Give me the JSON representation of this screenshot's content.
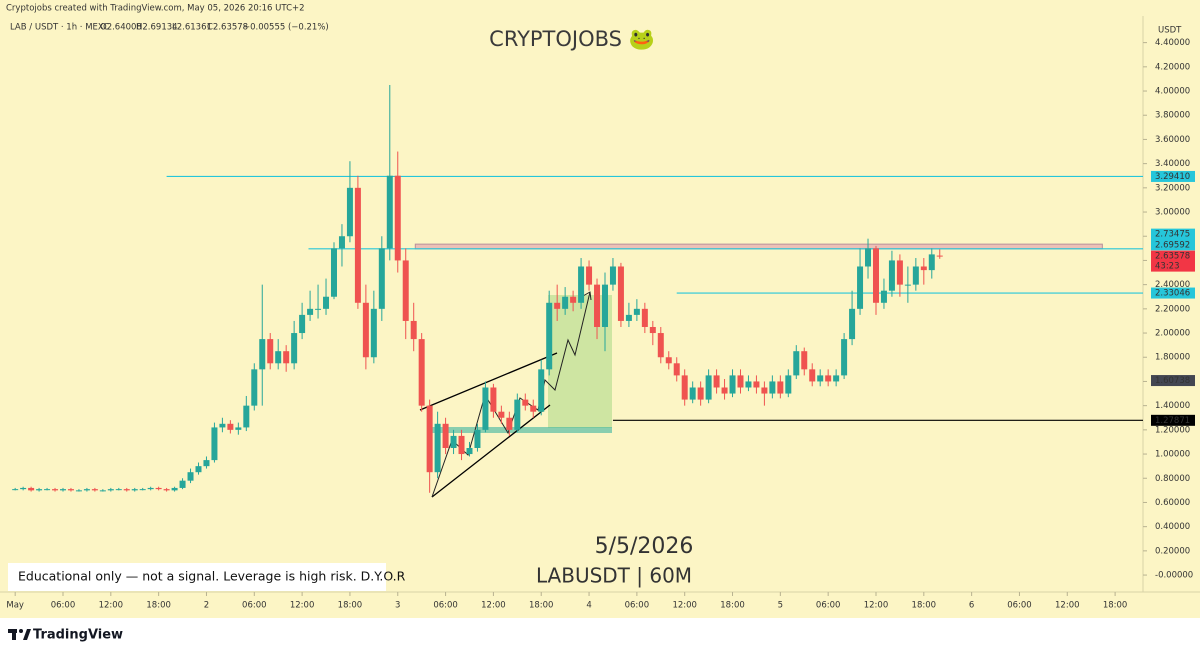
{
  "header": {
    "credit": "Cryptojobs created with TradingView.com, May 05, 2026 20:16 UTC+2",
    "symbol": "LAB / USDT · 1h · MEXC",
    "ohlc": [
      "O2.64008",
      "H2.69134",
      "L2.61361",
      "C2.63578",
      "−0.00555 (−0.21%)"
    ]
  },
  "chart_data": {
    "type": "candlestick",
    "title": "CRYPTOJOBS 🐸",
    "annotations": [
      "5/5/2026",
      "LABUSDT | 60M",
      "Educational only — not a signal. Leverage is high risk. D.Y.O.R"
    ],
    "y_axis_label": "USDT",
    "up_color": "#26a69a",
    "down_color": "#ef5350",
    "open": [
      0.71,
      0.71,
      0.72,
      0.7,
      0.71,
      0.71,
      0.7,
      0.71,
      0.7,
      0.7,
      0.71,
      0.7,
      0.7,
      0.71,
      0.71,
      0.7,
      0.71,
      0.71,
      0.72,
      0.71,
      0.7,
      0.72,
      0.78,
      0.85,
      0.9,
      0.95,
      1.22,
      1.25,
      1.2,
      1.22,
      1.4,
      1.7,
      1.95,
      1.75,
      1.85,
      1.75,
      2.0,
      2.15,
      2.2,
      2.2,
      2.3,
      2.7,
      2.8,
      3.2,
      2.25,
      1.8,
      2.2,
      2.7,
      3.3,
      2.6,
      2.1,
      1.95,
      1.4,
      0.85,
      1.25,
      1.05,
      1.15,
      1.0,
      1.05,
      1.2,
      1.55,
      1.35,
      1.3,
      1.2,
      1.45,
      1.4,
      1.35,
      1.7,
      2.25,
      2.2,
      2.3,
      2.25,
      2.55,
      2.4,
      2.05,
      2.4,
      2.55,
      2.1,
      2.15,
      2.2,
      2.05,
      2.0,
      1.8,
      1.75,
      1.65,
      1.45,
      1.55,
      1.45,
      1.65,
      1.55,
      1.5,
      1.65,
      1.55,
      1.6,
      1.55,
      1.5,
      1.6,
      1.5,
      1.65,
      1.85,
      1.7,
      1.6,
      1.65,
      1.6,
      1.65,
      1.95,
      2.2,
      2.55,
      2.7,
      2.25,
      2.35,
      2.6,
      2.4,
      2.4,
      2.55,
      2.52,
      2.64008
    ],
    "high": [
      0.72,
      0.73,
      0.73,
      0.72,
      0.72,
      0.72,
      0.72,
      0.72,
      0.71,
      0.72,
      0.72,
      0.71,
      0.72,
      0.72,
      0.72,
      0.72,
      0.72,
      0.73,
      0.73,
      0.72,
      0.73,
      0.8,
      0.88,
      0.93,
      0.98,
      1.26,
      1.3,
      1.28,
      1.26,
      1.48,
      1.75,
      2.4,
      2.0,
      1.95,
      1.9,
      2.1,
      2.25,
      2.35,
      2.4,
      2.45,
      2.75,
      2.9,
      3.42,
      3.3,
      2.4,
      2.35,
      2.8,
      4.05,
      3.5,
      2.7,
      2.25,
      2.0,
      1.45,
      1.35,
      1.3,
      1.2,
      1.2,
      1.1,
      1.25,
      1.6,
      1.58,
      1.4,
      1.35,
      1.5,
      1.5,
      1.45,
      1.78,
      2.35,
      2.4,
      2.38,
      2.35,
      2.62,
      2.6,
      2.45,
      2.5,
      2.62,
      2.58,
      2.25,
      2.28,
      2.25,
      2.1,
      2.05,
      1.85,
      1.8,
      1.7,
      1.6,
      1.6,
      1.7,
      1.7,
      1.62,
      1.7,
      1.7,
      1.65,
      1.65,
      1.6,
      1.65,
      1.65,
      1.7,
      1.9,
      1.88,
      1.75,
      1.7,
      1.7,
      1.7,
      2.0,
      2.35,
      2.7,
      2.78,
      2.72,
      2.45,
      2.68,
      2.65,
      2.55,
      2.62,
      2.62,
      2.7,
      2.69134
    ],
    "low": [
      0.7,
      0.7,
      0.69,
      0.69,
      0.7,
      0.69,
      0.69,
      0.69,
      0.69,
      0.69,
      0.69,
      0.69,
      0.69,
      0.7,
      0.69,
      0.69,
      0.7,
      0.7,
      0.7,
      0.69,
      0.69,
      0.71,
      0.76,
      0.83,
      0.88,
      0.93,
      1.18,
      1.17,
      1.16,
      1.19,
      1.36,
      1.4,
      1.7,
      1.7,
      1.68,
      1.7,
      1.95,
      2.1,
      2.12,
      2.15,
      2.28,
      2.55,
      2.75,
      2.2,
      1.7,
      1.75,
      2.1,
      2.6,
      2.5,
      1.95,
      1.85,
      1.35,
      0.68,
      0.8,
      1.0,
      1.0,
      0.95,
      0.98,
      1.02,
      1.18,
      1.3,
      1.25,
      1.15,
      1.18,
      1.36,
      1.3,
      1.32,
      1.65,
      2.1,
      2.15,
      2.18,
      2.2,
      2.35,
      1.95,
      1.85,
      2.35,
      2.05,
      2.05,
      2.1,
      2.0,
      1.9,
      1.75,
      1.7,
      1.6,
      1.4,
      1.42,
      1.4,
      1.42,
      1.5,
      1.45,
      1.47,
      1.5,
      1.52,
      1.5,
      1.4,
      1.46,
      1.46,
      1.47,
      1.62,
      1.65,
      1.56,
      1.56,
      1.56,
      1.56,
      1.62,
      1.9,
      2.15,
      2.45,
      2.15,
      2.2,
      2.3,
      2.3,
      2.25,
      2.35,
      2.4,
      2.45,
      2.61361
    ],
    "close": [
      0.71,
      0.72,
      0.7,
      0.71,
      0.71,
      0.7,
      0.71,
      0.7,
      0.7,
      0.71,
      0.7,
      0.7,
      0.71,
      0.71,
      0.7,
      0.71,
      0.71,
      0.72,
      0.71,
      0.7,
      0.72,
      0.78,
      0.85,
      0.9,
      0.95,
      1.22,
      1.25,
      1.2,
      1.22,
      1.4,
      1.7,
      1.95,
      1.75,
      1.85,
      1.75,
      2.0,
      2.15,
      2.2,
      2.2,
      2.3,
      2.7,
      2.8,
      3.2,
      2.25,
      1.8,
      2.2,
      2.7,
      3.3,
      2.6,
      2.1,
      1.95,
      1.4,
      0.85,
      1.25,
      1.05,
      1.15,
      1.0,
      1.05,
      1.2,
      1.55,
      1.35,
      1.3,
      1.2,
      1.45,
      1.4,
      1.35,
      1.7,
      2.25,
      2.2,
      2.3,
      2.25,
      2.55,
      2.4,
      2.05,
      2.4,
      2.55,
      2.1,
      2.15,
      2.2,
      2.05,
      2.0,
      1.8,
      1.75,
      1.65,
      1.45,
      1.55,
      1.45,
      1.65,
      1.55,
      1.5,
      1.65,
      1.55,
      1.6,
      1.55,
      1.5,
      1.6,
      1.5,
      1.65,
      1.85,
      1.7,
      1.6,
      1.65,
      1.6,
      1.65,
      1.95,
      2.2,
      2.55,
      2.7,
      2.25,
      2.35,
      2.6,
      2.4,
      2.4,
      2.55,
      2.52,
      2.65,
      2.63578
    ],
    "countdown": "43:23",
    "levels": [
      {
        "value": 3.2941,
        "label": "3.29410",
        "color": "#26c6da"
      },
      {
        "value": 2.73475,
        "label": "2.73475",
        "color": "#26c6da"
      },
      {
        "value": 2.69592,
        "label": "2.69592",
        "color": "#26c6da"
      },
      {
        "value": 2.63578,
        "label": "2.63578",
        "color": "#f23645"
      },
      {
        "value": 2.33046,
        "label": "2.33046",
        "color": "#26c6da"
      },
      {
        "value": 1.60738,
        "label": "1.60738",
        "color": "#434651"
      },
      {
        "value": 1.27871,
        "label": "1.27871",
        "color": "#000000"
      }
    ],
    "ylim": [
      -0.14,
      4.62
    ],
    "yticks": [
      {
        "value": 0,
        "label": "-0.00000"
      },
      {
        "value": 0.2,
        "label": "0.20000"
      },
      {
        "value": 0.4,
        "label": "0.40000"
      },
      {
        "value": 0.6,
        "label": "0.60000"
      },
      {
        "value": 0.8,
        "label": "0.80000"
      },
      {
        "value": 1,
        "label": "1.00000"
      },
      {
        "value": 1.2,
        "label": "1.20000"
      },
      {
        "value": 1.4,
        "label": "1.40000"
      },
      {
        "value": 1.6,
        "label": "1.60000"
      },
      {
        "value": 1.8,
        "label": "1.80000"
      },
      {
        "value": 2,
        "label": "2.00000"
      },
      {
        "value": 2.2,
        "label": "2.20000"
      },
      {
        "value": 2.4,
        "label": "2.40000"
      },
      {
        "value": 2.6,
        "label": "2.60000"
      },
      {
        "value": 2.8,
        "label": "2.80000"
      },
      {
        "value": 3,
        "label": "3.00000"
      },
      {
        "value": 3.2,
        "label": "3.20000"
      },
      {
        "value": 3.4,
        "label": "3.40000"
      },
      {
        "value": 3.6,
        "label": "3.60000"
      },
      {
        "value": 3.8,
        "label": "3.80000"
      },
      {
        "value": 4,
        "label": "4.00000"
      },
      {
        "value": 4.2,
        "label": "4.20000"
      },
      {
        "value": 4.4,
        "label": "4.40000"
      }
    ],
    "xlim": [
      -0.9,
      141.5
    ],
    "xticks": [
      {
        "value": 0,
        "label": "May"
      },
      {
        "value": 6,
        "label": "06:00"
      },
      {
        "value": 12,
        "label": "12:00"
      },
      {
        "value": 18,
        "label": "18:00"
      },
      {
        "value": 24,
        "label": "2"
      },
      {
        "value": 30,
        "label": "06:00"
      },
      {
        "value": 36,
        "label": "12:00"
      },
      {
        "value": 42,
        "label": "18:00"
      },
      {
        "value": 48,
        "label": "3"
      },
      {
        "value": 54,
        "label": "06:00"
      },
      {
        "value": 60,
        "label": "12:00"
      },
      {
        "value": 66,
        "label": "18:00"
      },
      {
        "value": 72,
        "label": "4"
      },
      {
        "value": 78,
        "label": "06:00"
      },
      {
        "value": 84,
        "label": "12:00"
      },
      {
        "value": 90,
        "label": "18:00"
      },
      {
        "value": 96,
        "label": "5"
      },
      {
        "value": 102,
        "label": "06:00"
      },
      {
        "value": 108,
        "label": "12:00"
      },
      {
        "value": 114,
        "label": "18:00"
      },
      {
        "value": 120,
        "label": "6"
      },
      {
        "value": 126,
        "label": "06:00"
      },
      {
        "value": 132,
        "label": "12:00"
      },
      {
        "value": 138,
        "label": "18:00"
      }
    ],
    "grid": false
  }
}
